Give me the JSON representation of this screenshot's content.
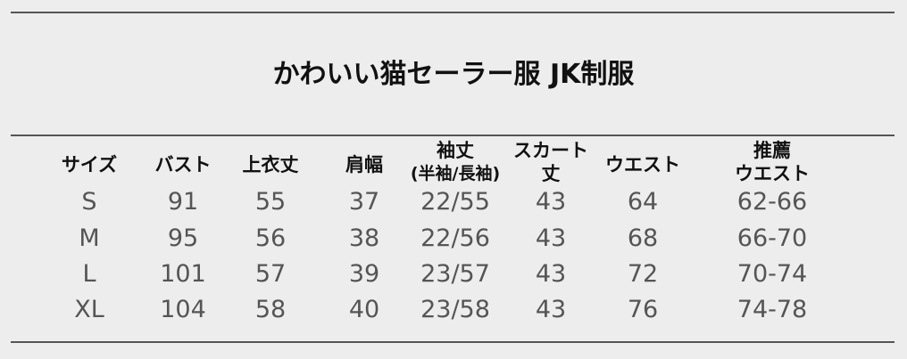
{
  "title": "かわいい猫セーラー服 JK制服",
  "table": {
    "headers": [
      [
        "サイズ"
      ],
      [
        "バスト"
      ],
      [
        "上衣丈"
      ],
      [
        "肩幅"
      ],
      [
        "袖丈",
        "(半袖/長袖)"
      ],
      [
        "スカート",
        "丈"
      ],
      [
        "ウエスト"
      ],
      [
        "推薦",
        "ウエスト"
      ]
    ],
    "rows": [
      [
        "S",
        "91",
        "55",
        "37",
        "22/55",
        "43",
        "64",
        "62-66"
      ],
      [
        "M",
        "95",
        "56",
        "38",
        "22/56",
        "43",
        "68",
        "66-70"
      ],
      [
        "L",
        "101",
        "57",
        "39",
        "23/57",
        "43",
        "72",
        "70-74"
      ],
      [
        "XL",
        "104",
        "58",
        "40",
        "23/58",
        "43",
        "76",
        "74-78"
      ]
    ]
  }
}
